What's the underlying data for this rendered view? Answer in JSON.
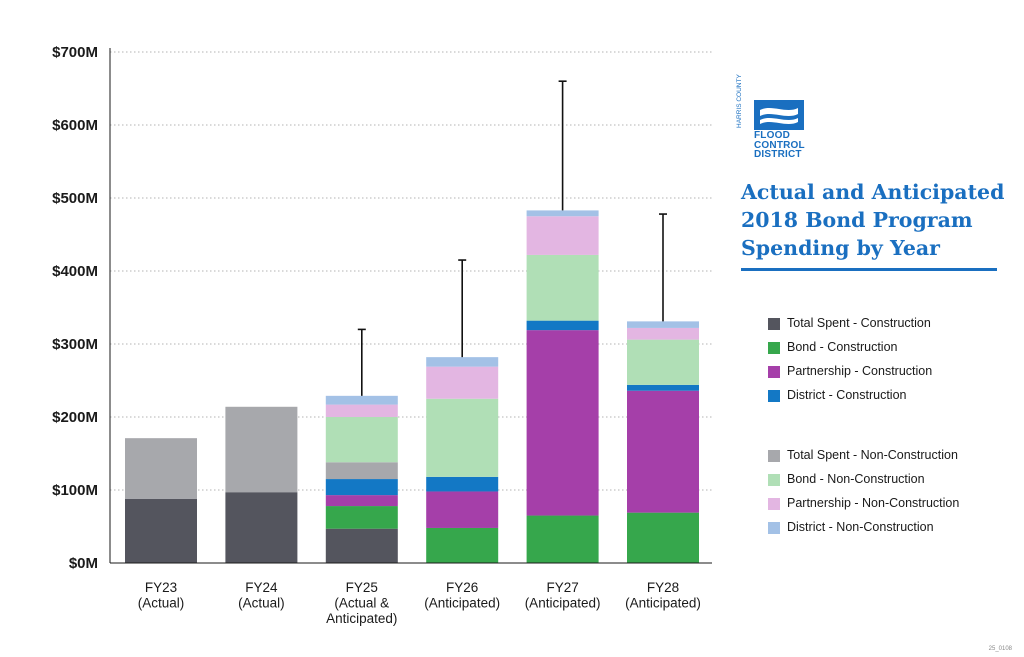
{
  "chart_data": {
    "type": "bar",
    "stacked": true,
    "title": "Actual and Anticipated 2018 Bond Program Spending by Year",
    "ylim": [
      0,
      700
    ],
    "yticks": [
      0,
      100,
      200,
      300,
      400,
      500,
      600,
      700
    ],
    "ytick_labels": [
      "$0M",
      "$100M",
      "$200M",
      "$300M",
      "$400M",
      "$500M",
      "$600M",
      "$700M"
    ],
    "grid": true,
    "categories": [
      [
        "FY23",
        "(Actual)"
      ],
      [
        "FY24",
        "(Actual)"
      ],
      [
        "FY25",
        "(Actual &",
        "Anticipated)"
      ],
      [
        "FY26",
        "(Anticipated)"
      ],
      [
        "FY27",
        "(Anticipated)"
      ],
      [
        "FY28",
        "(Anticipated)"
      ]
    ],
    "series": [
      {
        "name": "Total Spent - Construction",
        "color": "#54555e",
        "values": [
          88,
          97,
          47,
          0,
          0,
          0
        ]
      },
      {
        "name": "Bond - Construction",
        "color": "#36a74c",
        "values": [
          0,
          0,
          31,
          48,
          65,
          69
        ]
      },
      {
        "name": "Partnership -  Construction",
        "color": "#a53fa9",
        "values": [
          0,
          0,
          15,
          50,
          254,
          167
        ]
      },
      {
        "name": "District - Construction",
        "color": "#1378c5",
        "values": [
          0,
          0,
          22,
          20,
          13,
          8
        ]
      },
      {
        "name": "Total Spent - Non-Construction",
        "color": "#a7a8ac",
        "values": [
          83,
          117,
          23,
          0,
          0,
          0
        ]
      },
      {
        "name": "Bond - Non-Construction",
        "color": "#b0dfb6",
        "values": [
          0,
          0,
          62,
          107,
          90,
          62
        ]
      },
      {
        "name": "Partnership -  Non-Construction",
        "color": "#e3b6e2",
        "values": [
          0,
          0,
          17,
          44,
          53,
          16
        ]
      },
      {
        "name": "District - Non-Construction",
        "color": "#a3c1e6",
        "values": [
          0,
          0,
          12,
          13,
          8,
          9
        ]
      }
    ],
    "error_bars": [
      null,
      null,
      320,
      415,
      660,
      478
    ]
  },
  "logo": {
    "county_text": "HARRIS COUNTY",
    "lines": [
      "FLOOD",
      "CONTROL",
      "DISTRICT"
    ],
    "color": "#1a6fc0"
  },
  "footer_code": "25_0108"
}
